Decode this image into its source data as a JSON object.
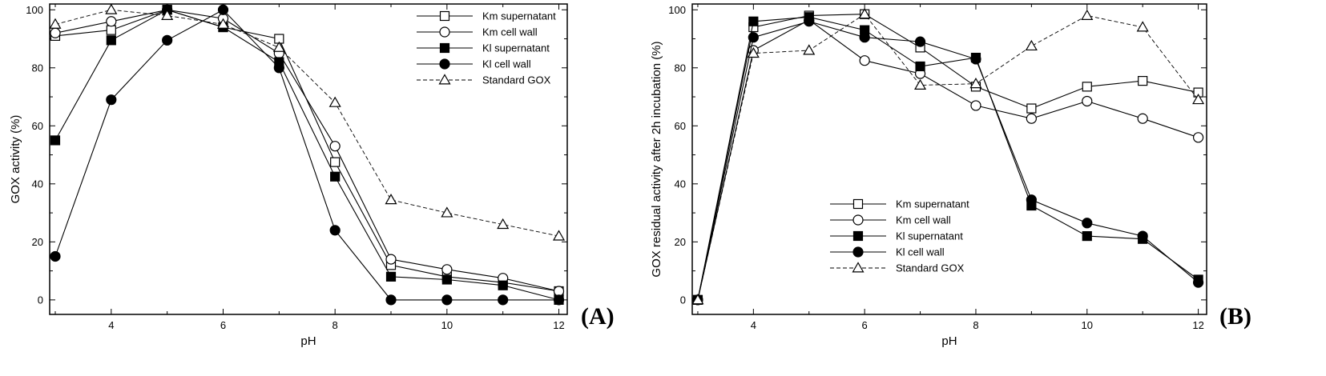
{
  "chart_data": [
    {
      "type": "line",
      "panel_label": "(A)",
      "xlabel": "pH",
      "ylabel": "GOX activity (%)",
      "xlim": [
        2.9,
        12.15
      ],
      "ylim": [
        -5,
        102
      ],
      "xticks": [
        4,
        6,
        8,
        10,
        12
      ],
      "yticks": [
        0,
        20,
        40,
        60,
        80,
        100
      ],
      "grid": false,
      "legend_position": "top-right",
      "series": [
        {
          "name": "Km supernatant",
          "marker": "open-square",
          "dash": "solid",
          "x": [
            3,
            4,
            5,
            6,
            7,
            8,
            9,
            10,
            11,
            12
          ],
          "y": [
            91,
            93,
            100,
            94,
            90,
            47.5,
            12,
            8,
            6,
            3
          ]
        },
        {
          "name": "Km cell wall",
          "marker": "open-circle",
          "dash": "solid",
          "x": [
            3,
            4,
            5,
            6,
            7,
            8,
            9,
            10,
            11,
            12
          ],
          "y": [
            92,
            96,
            100,
            97,
            85,
            53,
            14,
            10.5,
            7.5,
            3
          ]
        },
        {
          "name": "Kl supernatant",
          "marker": "filled-square",
          "dash": "solid",
          "x": [
            3,
            4,
            5,
            6,
            7,
            8,
            9,
            10,
            11,
            12
          ],
          "y": [
            55,
            89.5,
            100,
            94,
            82,
            42.5,
            8,
            7,
            5,
            0
          ]
        },
        {
          "name": "Kl cell wall",
          "marker": "filled-circle",
          "dash": "solid",
          "x": [
            3,
            4,
            5,
            6,
            7,
            8,
            9,
            10,
            11,
            12
          ],
          "y": [
            15,
            69,
            89.5,
            100,
            80,
            24,
            0,
            0,
            0,
            0
          ]
        },
        {
          "name": "Standard GOX",
          "marker": "open-triangle",
          "dash": "dashed",
          "x": [
            3,
            4,
            5,
            6,
            7,
            8,
            9,
            10,
            11,
            12
          ],
          "y": [
            95,
            100,
            98,
            95,
            87,
            68,
            34.5,
            30,
            26,
            22
          ]
        }
      ]
    },
    {
      "type": "line",
      "panel_label": "(B)",
      "xlabel": "pH",
      "ylabel": "GOX residual activity after 2h incubation (%)",
      "xlim": [
        2.9,
        12.15
      ],
      "ylim": [
        -5,
        102
      ],
      "xticks": [
        4,
        6,
        8,
        10,
        12
      ],
      "yticks": [
        0,
        20,
        40,
        60,
        80,
        100
      ],
      "grid": false,
      "legend_position": "bottom-center",
      "series": [
        {
          "name": "Km supernatant",
          "marker": "open-square",
          "dash": "solid",
          "x": [
            3,
            4,
            5,
            6,
            7,
            8,
            9,
            10,
            11,
            12
          ],
          "y": [
            0,
            94,
            98,
            98.5,
            87,
            73.5,
            66,
            73.5,
            75.5,
            71.5
          ]
        },
        {
          "name": "Km cell wall",
          "marker": "open-circle",
          "dash": "solid",
          "x": [
            3,
            4,
            5,
            6,
            7,
            8,
            9,
            10,
            11,
            12
          ],
          "y": [
            0,
            86,
            96.5,
            82.5,
            78,
            67,
            62.5,
            68.5,
            62.5,
            56
          ]
        },
        {
          "name": "Kl supernatant",
          "marker": "filled-square",
          "dash": "solid",
          "x": [
            3,
            4,
            5,
            6,
            7,
            8,
            9,
            10,
            11,
            12
          ],
          "y": [
            0,
            96,
            97.5,
            93,
            80.5,
            83.5,
            32.5,
            22,
            21,
            7
          ]
        },
        {
          "name": "Kl cell wall",
          "marker": "filled-circle",
          "dash": "solid",
          "x": [
            3,
            4,
            5,
            6,
            7,
            8,
            9,
            10,
            11,
            12
          ],
          "y": [
            0,
            90.5,
            96,
            90.5,
            89,
            83,
            34.5,
            26.5,
            22,
            6
          ]
        },
        {
          "name": "Standard GOX",
          "marker": "open-triangle",
          "dash": "dashed",
          "x": [
            3,
            4,
            5,
            6,
            7,
            8,
            9,
            10,
            11,
            12
          ],
          "y": [
            0,
            85,
            86,
            98.5,
            74,
            74.5,
            87.5,
            98,
            94,
            69
          ]
        }
      ]
    }
  ]
}
